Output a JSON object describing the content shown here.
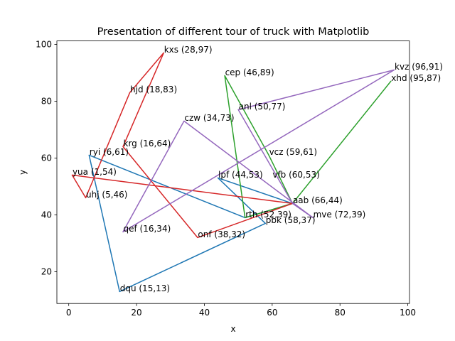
{
  "chart_data": {
    "type": "line",
    "title": "Presentation of different tour of truck with Matplotlib",
    "xlabel": "x",
    "ylabel": "y",
    "xlim": [
      -3.5,
      100.5
    ],
    "ylim": [
      8.8,
      101.2
    ],
    "xticks": [
      0,
      20,
      40,
      60,
      80,
      100
    ],
    "yticks": [
      20,
      40,
      60,
      80,
      100
    ],
    "grid": false,
    "points": [
      {
        "name": "kxs",
        "x": 28,
        "y": 97,
        "label": "kxs (28,97)"
      },
      {
        "name": "hjd",
        "x": 18,
        "y": 83,
        "label": "hjd (18,83)"
      },
      {
        "name": "cep",
        "x": 46,
        "y": 89,
        "label": "cep (46,89)"
      },
      {
        "name": "kvz",
        "x": 96,
        "y": 91,
        "label": "kvz (96,91)"
      },
      {
        "name": "xhd",
        "x": 95,
        "y": 87,
        "label": "xhd (95,87)"
      },
      {
        "name": "anl",
        "x": 50,
        "y": 77,
        "label": "anl (50,77)"
      },
      {
        "name": "czw",
        "x": 34,
        "y": 73,
        "label": "czw (34,73)"
      },
      {
        "name": "krg",
        "x": 16,
        "y": 64,
        "label": "krg (16,64)"
      },
      {
        "name": "ryi",
        "x": 6,
        "y": 61,
        "label": "ryi (6,61)"
      },
      {
        "name": "vcz",
        "x": 59,
        "y": 61,
        "label": "vcz (59,61)"
      },
      {
        "name": "yua",
        "x": 1,
        "y": 54,
        "label": "yua (1,54)"
      },
      {
        "name": "lpf",
        "x": 44,
        "y": 53,
        "label": "lpf (44,53)"
      },
      {
        "name": "vfb",
        "x": 60,
        "y": 53,
        "label": "vfb (60,53)"
      },
      {
        "name": "uhj",
        "x": 5,
        "y": 46,
        "label": "uhj (5,46)"
      },
      {
        "name": "aab",
        "x": 66,
        "y": 44,
        "label": "aab (66,44)"
      },
      {
        "name": "rth",
        "x": 52,
        "y": 39,
        "label": "rth (52,39)"
      },
      {
        "name": "mve",
        "x": 72,
        "y": 39,
        "label": "mve (72,39)"
      },
      {
        "name": "pbk",
        "x": 58,
        "y": 37,
        "label": "pbk (58,37)"
      },
      {
        "name": "qef",
        "x": 16,
        "y": 34,
        "label": "qef (16,34)"
      },
      {
        "name": "onf",
        "x": 38,
        "y": 32,
        "label": "onf (38,32)"
      },
      {
        "name": "dqu",
        "x": 15,
        "y": 13,
        "label": "dqu (15,13)"
      }
    ],
    "series": [
      {
        "color": "#1f77b4",
        "route": [
          "aab",
          "lpf",
          "pbk",
          "dqu",
          "ryi",
          "rth",
          "aab"
        ]
      },
      {
        "color": "#ff7f0e",
        "route": []
      },
      {
        "color": "#2ca02c",
        "route": [
          "aab",
          "xhd",
          "aab",
          "vcz",
          "cep",
          "rth",
          "aab"
        ]
      },
      {
        "color": "#d62728",
        "route": [
          "aab",
          "yua",
          "uhj",
          "hjd",
          "kxs",
          "krg",
          "onf",
          "aab"
        ]
      },
      {
        "color": "#9467bd",
        "route": [
          "aab",
          "anl",
          "kvz",
          "qef",
          "czw",
          "mve",
          "aab"
        ]
      }
    ]
  }
}
